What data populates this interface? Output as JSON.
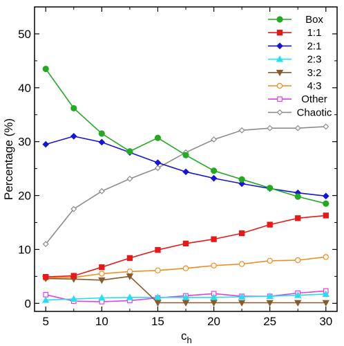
{
  "chart_data": {
    "type": "line",
    "xlabel": "c",
    "xlabel_sub": "h",
    "ylabel": "Percentage (%)",
    "xlim": [
      4,
      31
    ],
    "ylim": [
      -1.5,
      55
    ],
    "xticks": [
      5,
      10,
      15,
      20,
      25,
      30
    ],
    "yticks": [
      0,
      10,
      20,
      30,
      40,
      50
    ],
    "grid": false,
    "legend_position": "top-right",
    "x": [
      5,
      7.5,
      10,
      12.5,
      15,
      17.5,
      20,
      22.5,
      25,
      27.5,
      30
    ],
    "series": [
      {
        "name": "Box",
        "color": "#22aa22",
        "marker": "circle",
        "filled": true,
        "values": [
          43.5,
          36.2,
          31.5,
          28.2,
          30.7,
          27.5,
          24.6,
          23.0,
          21.4,
          19.8,
          18.5
        ]
      },
      {
        "name": "1:1",
        "color": "#e81818",
        "marker": "square",
        "filled": true,
        "values": [
          4.9,
          5.1,
          6.7,
          8.4,
          9.9,
          11.1,
          11.9,
          13.0,
          14.6,
          15.8,
          16.3
        ]
      },
      {
        "name": "2:1",
        "color": "#1515d8",
        "marker": "diamond",
        "filled": true,
        "values": [
          29.5,
          31.0,
          29.9,
          28.0,
          26.1,
          24.4,
          23.2,
          22.2,
          21.3,
          20.5,
          19.9
        ]
      },
      {
        "name": "2:3",
        "color": "#22e0f0",
        "marker": "triangle-up",
        "filled": true,
        "values": [
          0.6,
          0.8,
          1.0,
          1.1,
          1.1,
          1.1,
          1.1,
          1.2,
          1.3,
          1.5,
          1.7
        ]
      },
      {
        "name": "3:2",
        "color": "#8b5a2b",
        "marker": "triangle-down",
        "filled": true,
        "values": [
          4.6,
          4.5,
          4.3,
          5.0,
          0.1,
          0.1,
          0.1,
          0.1,
          0.1,
          0.1,
          0.1
        ]
      },
      {
        "name": "4:3",
        "color": "#f08c1e",
        "marker": "circle",
        "filled": false,
        "values": [
          4.7,
          4.8,
          5.5,
          5.9,
          6.1,
          6.5,
          7.0,
          7.3,
          7.9,
          8.0,
          8.6
        ]
      },
      {
        "name": "Other",
        "color": "#e23ce2",
        "marker": "square",
        "filled": false,
        "values": [
          1.6,
          0.4,
          0.3,
          0.5,
          1.0,
          1.4,
          1.8,
          1.3,
          1.3,
          1.9,
          2.3
        ]
      },
      {
        "name": "Chaotic",
        "color": "#8c8c8c",
        "marker": "diamond",
        "filled": false,
        "values": [
          11.0,
          17.5,
          20.8,
          23.1,
          25.1,
          28.0,
          30.4,
          32.1,
          32.5,
          32.5,
          32.8
        ]
      }
    ]
  }
}
